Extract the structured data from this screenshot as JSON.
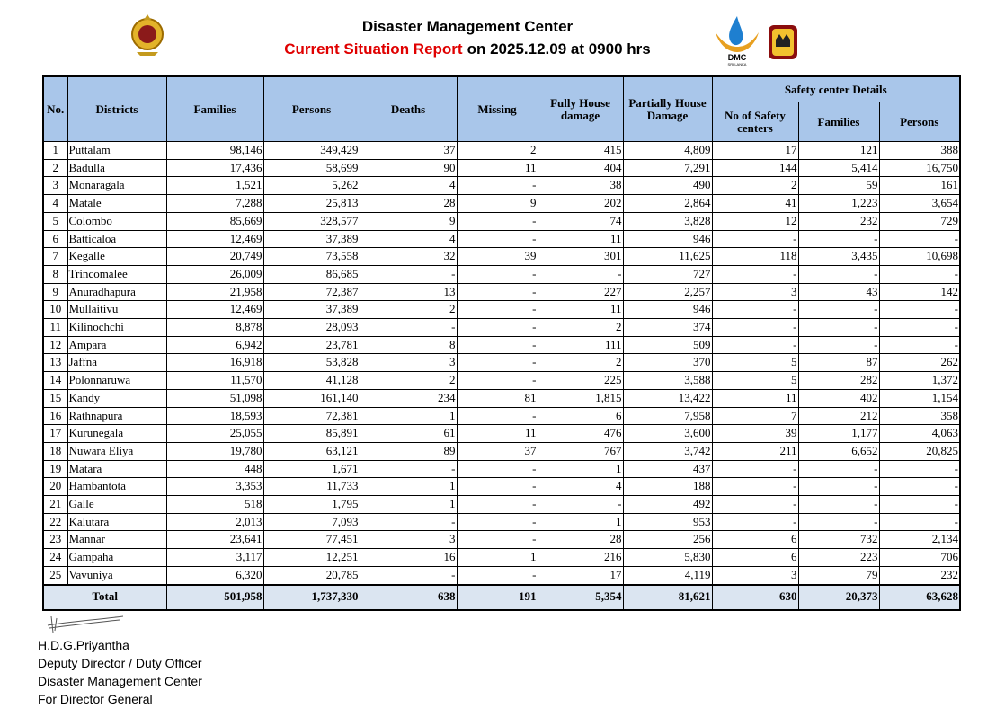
{
  "header": {
    "title": "Disaster Management Center",
    "report_label": "Current Situation Report",
    "report_date": "on 2025.12.09 at 0900 hrs",
    "logo_text": "DMC",
    "logo_subtext": "SRI LANKA"
  },
  "table": {
    "group_header": "Safety center Details",
    "columns": [
      "No.",
      "Districts",
      "Families",
      "Persons",
      "Deaths",
      "Missing",
      "Fully House damage",
      "Partially House Damage",
      "No of Safety centers",
      "Families",
      "Persons"
    ],
    "rows": [
      [
        "1",
        "Puttalam",
        "98,146",
        "349,429",
        "37",
        "2",
        "415",
        "4,809",
        "17",
        "121",
        "388"
      ],
      [
        "2",
        "Badulla",
        "17,436",
        "58,699",
        "90",
        "11",
        "404",
        "7,291",
        "144",
        "5,414",
        "16,750"
      ],
      [
        "3",
        "Monaragala",
        "1,521",
        "5,262",
        "4",
        "-",
        "38",
        "490",
        "2",
        "59",
        "161"
      ],
      [
        "4",
        "Matale",
        "7,288",
        "25,813",
        "28",
        "9",
        "202",
        "2,864",
        "41",
        "1,223",
        "3,654"
      ],
      [
        "5",
        "Colombo",
        "85,669",
        "328,577",
        "9",
        "-",
        "74",
        "3,828",
        "12",
        "232",
        "729"
      ],
      [
        "6",
        "Batticaloa",
        "12,469",
        "37,389",
        "4",
        "-",
        "11",
        "946",
        "-",
        "-",
        "-"
      ],
      [
        "7",
        "Kegalle",
        "20,749",
        "73,558",
        "32",
        "39",
        "301",
        "11,625",
        "118",
        "3,435",
        "10,698"
      ],
      [
        "8",
        "Trincomalee",
        "26,009",
        "86,685",
        "-",
        "-",
        "-",
        "727",
        "-",
        "-",
        "-"
      ],
      [
        "9",
        "Anuradhapura",
        "21,958",
        "72,387",
        "13",
        "-",
        "227",
        "2,257",
        "3",
        "43",
        "142"
      ],
      [
        "10",
        "Mullaitivu",
        "12,469",
        "37,389",
        "2",
        "-",
        "11",
        "946",
        "-",
        "-",
        "-"
      ],
      [
        "11",
        "Kilinochchi",
        "8,878",
        "28,093",
        "-",
        "-",
        "2",
        "374",
        "-",
        "-",
        "-"
      ],
      [
        "12",
        "Ampara",
        "6,942",
        "23,781",
        "8",
        "-",
        "111",
        "509",
        "-",
        "-",
        "-"
      ],
      [
        "13",
        "Jaffna",
        "16,918",
        "53,828",
        "3",
        "-",
        "2",
        "370",
        "5",
        "87",
        "262"
      ],
      [
        "14",
        "Polonnaruwa",
        "11,570",
        "41,128",
        "2",
        "-",
        "225",
        "3,588",
        "5",
        "282",
        "1,372"
      ],
      [
        "15",
        "Kandy",
        "51,098",
        "161,140",
        "234",
        "81",
        "1,815",
        "13,422",
        "11",
        "402",
        "1,154"
      ],
      [
        "16",
        "Rathnapura",
        "18,593",
        "72,381",
        "1",
        "-",
        "6",
        "7,958",
        "7",
        "212",
        "358"
      ],
      [
        "17",
        "Kurunegala",
        "25,055",
        "85,891",
        "61",
        "11",
        "476",
        "3,600",
        "39",
        "1,177",
        "4,063"
      ],
      [
        "18",
        "Nuwara Eliya",
        "19,780",
        "63,121",
        "89",
        "37",
        "767",
        "3,742",
        "211",
        "6,652",
        "20,825"
      ],
      [
        "19",
        "Matara",
        "448",
        "1,671",
        "-",
        "-",
        "1",
        "437",
        "-",
        "-",
        "-"
      ],
      [
        "20",
        "Hambantota",
        "3,353",
        "11,733",
        "1",
        "-",
        "4",
        "188",
        "-",
        "-",
        "-"
      ],
      [
        "21",
        "Galle",
        "518",
        "1,795",
        "1",
        "-",
        "-",
        "492",
        "-",
        "-",
        "-"
      ],
      [
        "22",
        "Kalutara",
        "2,013",
        "7,093",
        "-",
        "-",
        "1",
        "953",
        "-",
        "-",
        "-"
      ],
      [
        "23",
        "Mannar",
        "23,641",
        "77,451",
        "3",
        "-",
        "28",
        "256",
        "6",
        "732",
        "2,134"
      ],
      [
        "24",
        "Gampaha",
        "3,117",
        "12,251",
        "16",
        "1",
        "216",
        "5,830",
        "6",
        "223",
        "706"
      ],
      [
        "25",
        "Vavuniya",
        "6,320",
        "20,785",
        "-",
        "-",
        "17",
        "4,119",
        "3",
        "79",
        "232"
      ]
    ],
    "total": {
      "label": "Total",
      "values": [
        "501,958",
        "1,737,330",
        "638",
        "191",
        "5,354",
        "81,621",
        "630",
        "20,373",
        "63,628"
      ]
    }
  },
  "signature": {
    "lines": [
      "H.D.G.Priyantha",
      "Deputy Director / Duty Officer",
      "Disaster Management Center",
      "For Director General"
    ]
  }
}
